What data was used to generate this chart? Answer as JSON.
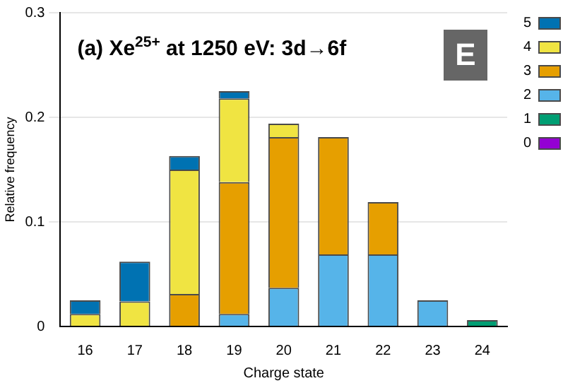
{
  "chart_data": {
    "type": "bar",
    "title": "(a) Xe$^{25+}$ at 1250 eV: 3d→6f",
    "xlabel": "Charge state",
    "ylabel": "Relative frequency",
    "annotations": [
      "E"
    ],
    "categories": [
      "16",
      "17",
      "18",
      "19",
      "20",
      "21",
      "22",
      "23",
      "24"
    ],
    "stacked": true,
    "series": [
      {
        "name": "0",
        "color": "#9400d3",
        "values": [
          null,
          null,
          null,
          null,
          null,
          null,
          null,
          null,
          null
        ]
      },
      {
        "name": "1",
        "color": "#009e73",
        "values": [
          null,
          null,
          null,
          null,
          null,
          null,
          null,
          null,
          0.006
        ]
      },
      {
        "name": "2",
        "color": "#56b4e9",
        "values": [
          null,
          null,
          null,
          0.012,
          0.037,
          0.069,
          0.069,
          0.025,
          null
        ]
      },
      {
        "name": "3",
        "color": "#e69f00",
        "values": [
          null,
          null,
          0.031,
          0.126,
          0.144,
          0.112,
          0.05,
          null,
          null
        ]
      },
      {
        "name": "4",
        "color": "#f0e442",
        "values": [
          0.012,
          0.024,
          0.119,
          0.08,
          0.013,
          null,
          null,
          null,
          null
        ]
      },
      {
        "name": "5",
        "color": "#0072b2",
        "values": [
          0.013,
          0.038,
          0.013,
          0.007,
          null,
          null,
          null,
          null,
          null
        ]
      }
    ],
    "ylim": [
      0,
      0.3
    ],
    "yticks": [
      0,
      0.1,
      0.2,
      0.3
    ],
    "grid": "y",
    "legend": "right"
  }
}
